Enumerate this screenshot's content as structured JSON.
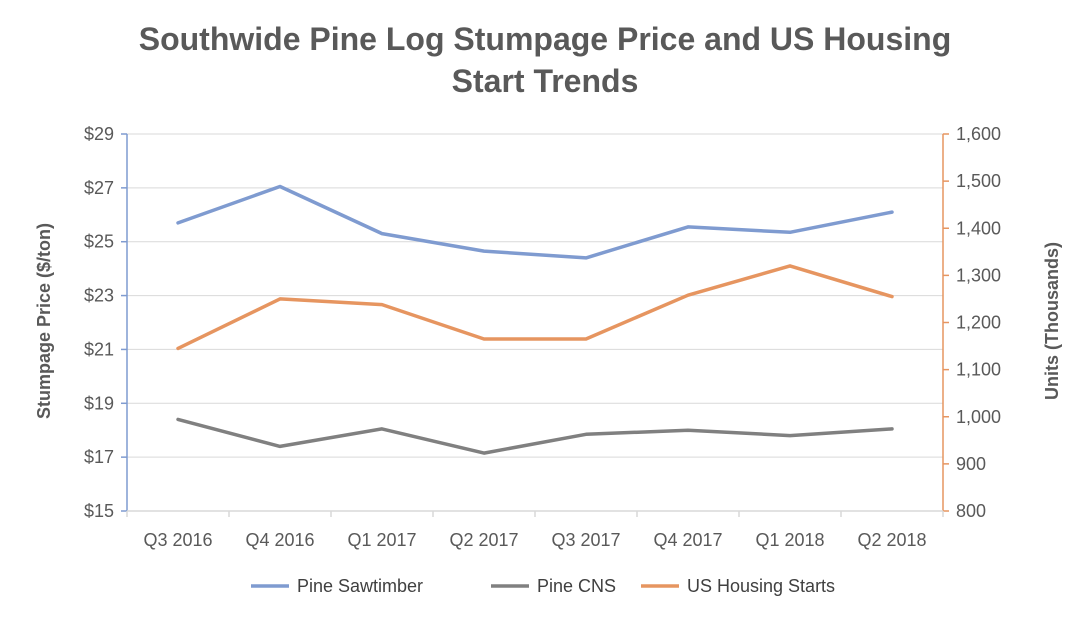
{
  "chart_data": {
    "type": "line",
    "title": "Southwide Pine Log Stumpage Price and US Housing Start Trends",
    "title_lines": [
      "Southwide Pine Log Stumpage Price and US Housing",
      "Start Trends"
    ],
    "categories": [
      "Q3 2016",
      "Q4 2016",
      "Q1 2017",
      "Q2 2017",
      "Q3 2017",
      "Q4 2017",
      "Q1 2018",
      "Q2 2018"
    ],
    "ylabel": "Stumpage Price ($/ton)",
    "ylabel_right": "Units (Thousands)",
    "ylim": [
      15,
      29
    ],
    "ylim_right": [
      800,
      1600
    ],
    "yticks": [
      "$15",
      "$17",
      "$19",
      "$21",
      "$23",
      "$25",
      "$27",
      "$29"
    ],
    "yticks_right": [
      "800",
      "900",
      "1,000",
      "1,100",
      "1,200",
      "1,300",
      "1,400",
      "1,500",
      "1,600"
    ],
    "grid": true,
    "legend_position": "bottom",
    "series": [
      {
        "name": "Pine Sawtimber",
        "axis": "left",
        "color": "#7f9bd0",
        "values": [
          25.7,
          27.05,
          25.3,
          24.65,
          24.4,
          25.55,
          25.35,
          26.1
        ]
      },
      {
        "name": "Pine CNS",
        "axis": "left",
        "color": "#808080",
        "values": [
          18.4,
          17.4,
          18.05,
          17.15,
          17.85,
          18.0,
          17.8,
          18.05
        ]
      },
      {
        "name": "US Housing Starts",
        "axis": "right",
        "color": "#e69560",
        "values": [
          1145,
          1250,
          1238,
          1165,
          1165,
          1258,
          1320,
          1255
        ]
      }
    ]
  }
}
